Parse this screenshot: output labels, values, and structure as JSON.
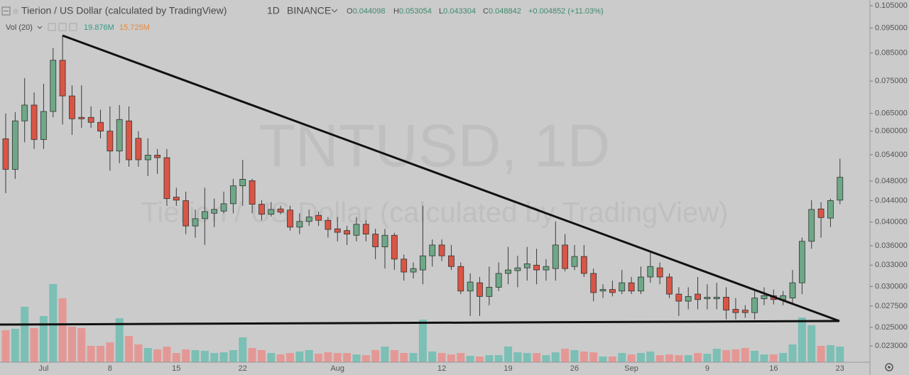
{
  "chart_data": {
    "type": "candlestick",
    "title": "Tierion / US Dollar (calculated by TradingView)",
    "interval": "1D",
    "exchange": "BINANCE",
    "watermark": "TNTUSD, 1D",
    "ohlc_labels": [
      "O",
      "H",
      "L",
      "C"
    ],
    "change": "+0.004852 (+11.03%)",
    "log_scale": true,
    "grid": false,
    "up_color": "#6ea887",
    "down_color": "#d95545",
    "categories": [
      null,
      null,
      null,
      null,
      "Jul",
      null,
      null,
      null,
      null,
      null,
      null,
      "8",
      null,
      null,
      null,
      null,
      null,
      null,
      "15",
      null,
      null,
      null,
      null,
      null,
      null,
      "22",
      null,
      null,
      null,
      null,
      null,
      null,
      null,
      null,
      null,
      "Aug",
      null,
      null,
      null,
      null,
      null,
      null,
      null,
      null,
      null,
      null,
      "12",
      null,
      null,
      null,
      null,
      null,
      null,
      "19",
      null,
      null,
      null,
      null,
      null,
      null,
      "26",
      null,
      null,
      null,
      null,
      null,
      "Sep",
      null,
      null,
      null,
      null,
      null,
      null,
      null,
      "9",
      null,
      null,
      null,
      null,
      null,
      null,
      "16",
      null,
      null,
      null,
      null,
      null,
      null,
      "23"
    ],
    "open": [
      0.058,
      0.0506,
      0.0628,
      0.0674,
      0.0578,
      0.0655,
      0.0823,
      0.0702,
      0.0638,
      0.0638,
      0.0624,
      0.06,
      0.0549,
      0.0628,
      0.0581,
      0.0528,
      0.0539,
      0.0533,
      0.0447,
      0.044,
      0.0393,
      0.0406,
      0.0416,
      0.042,
      0.0434,
      0.047,
      0.0481,
      0.0433,
      0.0414,
      0.0424,
      0.0422,
      0.0391,
      0.0401,
      0.0412,
      0.0403,
      0.0388,
      0.0385,
      0.0377,
      0.0396,
      0.0379,
      0.0358,
      0.0377,
      0.0339,
      0.032,
      0.0323,
      0.0344,
      0.0361,
      0.0344,
      0.0328,
      0.0294,
      0.0305,
      0.0287,
      0.0299,
      0.0318,
      0.0322,
      0.0326,
      0.033,
      0.0323,
      0.0325,
      0.0361,
      0.0328,
      0.0343,
      0.0318,
      0.0294,
      0.0296,
      0.0294,
      0.0305,
      0.0294,
      0.0313,
      0.0326,
      0.0313,
      0.029,
      0.0281,
      0.029,
      0.0284,
      0.0284,
      0.0286,
      0.0271,
      0.027,
      0.0267,
      0.0284,
      0.0288,
      0.0283,
      0.0285,
      0.0305,
      0.0367,
      0.0424,
      0.0407,
      0.044098
    ],
    "high": [
      0.0649,
      0.0653,
      0.076,
      0.0713,
      0.0741,
      0.0869,
      0.0919,
      0.0736,
      0.0736,
      0.067,
      0.066,
      0.067,
      0.0674,
      0.067,
      0.06,
      0.0581,
      0.0554,
      0.0554,
      0.0466,
      0.0458,
      0.0423,
      0.0466,
      0.0444,
      0.0458,
      0.0485,
      0.0528,
      0.0485,
      0.0441,
      0.0437,
      0.043,
      0.043,
      0.0416,
      0.0423,
      0.0419,
      0.0409,
      0.0409,
      0.0393,
      0.0409,
      0.0403,
      0.0388,
      0.0388,
      0.0381,
      0.0346,
      0.0334,
      0.043,
      0.037,
      0.037,
      0.0361,
      0.0334,
      0.0318,
      0.0313,
      0.0328,
      0.0334,
      0.0358,
      0.0344,
      0.0358,
      0.0355,
      0.0339,
      0.0401,
      0.0379,
      0.0361,
      0.0361,
      0.0325,
      0.0303,
      0.0308,
      0.0323,
      0.0313,
      0.0328,
      0.035,
      0.0334,
      0.0318,
      0.0299,
      0.0299,
      0.0313,
      0.0303,
      0.0305,
      0.0299,
      0.0285,
      0.0276,
      0.0294,
      0.0299,
      0.0296,
      0.0294,
      0.0323,
      0.0373,
      0.0441,
      0.0437,
      0.0444,
      0.053054
    ],
    "low": [
      0.0455,
      0.0485,
      0.0571,
      0.0554,
      0.0554,
      0.0638,
      0.0618,
      0.059,
      0.0609,
      0.0609,
      0.0581,
      0.0503,
      0.052,
      0.0512,
      0.0512,
      0.0491,
      0.0496,
      0.043,
      0.043,
      0.0379,
      0.0373,
      0.0361,
      0.0391,
      0.0416,
      0.0416,
      0.043,
      0.0416,
      0.0403,
      0.041,
      0.0414,
      0.0385,
      0.0379,
      0.0393,
      0.0393,
      0.0373,
      0.0367,
      0.0361,
      0.0367,
      0.0367,
      0.0339,
      0.0325,
      0.0323,
      0.0308,
      0.0311,
      0.0303,
      0.0328,
      0.0336,
      0.0323,
      0.029,
      0.0263,
      0.0263,
      0.0276,
      0.0294,
      0.0303,
      0.0299,
      0.0308,
      0.0303,
      0.0308,
      0.0308,
      0.0321,
      0.0323,
      0.0313,
      0.0281,
      0.0285,
      0.0287,
      0.029,
      0.029,
      0.029,
      0.0305,
      0.0303,
      0.0285,
      0.0263,
      0.0271,
      0.0271,
      0.0271,
      0.0271,
      0.0259,
      0.0259,
      0.0261,
      0.0259,
      0.0276,
      0.0277,
      0.0276,
      0.0277,
      0.029,
      0.0355,
      0.0373,
      0.0391,
      0.043304
    ],
    "close": [
      0.0506,
      0.0628,
      0.0674,
      0.0578,
      0.0655,
      0.0823,
      0.0702,
      0.0634,
      0.0634,
      0.0624,
      0.06,
      0.0549,
      0.0632,
      0.0528,
      0.0528,
      0.0539,
      0.0533,
      0.0444,
      0.0441,
      0.0393,
      0.0406,
      0.0419,
      0.0423,
      0.0434,
      0.047,
      0.0484,
      0.0433,
      0.0414,
      0.0423,
      0.0418,
      0.0391,
      0.0401,
      0.0409,
      0.0403,
      0.0387,
      0.0382,
      0.0379,
      0.0396,
      0.0379,
      0.0358,
      0.0377,
      0.0339,
      0.032,
      0.0325,
      0.0344,
      0.0361,
      0.0344,
      0.0328,
      0.0294,
      0.0306,
      0.0287,
      0.0299,
      0.0318,
      0.0323,
      0.0326,
      0.0332,
      0.0323,
      0.0328,
      0.0361,
      0.0325,
      0.0343,
      0.0318,
      0.0292,
      0.0296,
      0.0292,
      0.0305,
      0.0294,
      0.0313,
      0.0328,
      0.0313,
      0.029,
      0.0281,
      0.0287,
      0.0283,
      0.0286,
      0.0286,
      0.027,
      0.0267,
      0.0267,
      0.0285,
      0.0288,
      0.0283,
      0.0288,
      0.0305,
      0.0367,
      0.0423,
      0.0408,
      0.044,
      0.048842
    ],
    "volume": {
      "label": "Vol (20)",
      "value_label": "19.876M",
      "ma_label": "15.725M",
      "up_color": "#7bbfb5",
      "down_color": "#e49895",
      "values": [
        40.7,
        42.5,
        70.5,
        43.4,
        58.7,
        99.4,
        81.3,
        45.2,
        43.4,
        20.8,
        20.8,
        25.3,
        56.0,
        33.4,
        22.6,
        18.1,
        16.3,
        19.9,
        11.7,
        16.3,
        15.4,
        14.5,
        11.7,
        12.6,
        15.4,
        31.6,
        18.1,
        15.4,
        11.7,
        9.9,
        11.7,
        13.6,
        15.4,
        10.8,
        12.6,
        11.7,
        11.7,
        9.9,
        9.0,
        15.4,
        19.9,
        15.4,
        11.7,
        11.7,
        54.2,
        13.6,
        11.7,
        9.9,
        11.7,
        8.1,
        7.2,
        9.0,
        9.0,
        19.9,
        12.6,
        11.7,
        11.7,
        9.0,
        12.6,
        17.2,
        15.4,
        13.6,
        12.6,
        7.2,
        7.2,
        11.7,
        9.9,
        11.7,
        13.6,
        9.0,
        9.9,
        9.0,
        9.0,
        11.7,
        10.8,
        17.2,
        15.4,
        16.3,
        18.1,
        14.5,
        9.9,
        9.9,
        11.7,
        22.6,
        56.9,
        47.0,
        20.8,
        21.7,
        19.876
      ]
    },
    "ylim": [
      0.0214,
      0.1077
    ],
    "yticks": [
      {
        "value": 0.105,
        "label": "0.105000"
      },
      {
        "value": 0.095,
        "label": "0.095000"
      },
      {
        "value": 0.085,
        "label": "0.085000"
      },
      {
        "value": 0.075,
        "label": "0.075000"
      },
      {
        "value": 0.065,
        "label": "0.065000"
      },
      {
        "value": 0.06,
        "label": "0.060000"
      },
      {
        "value": 0.054,
        "label": "0.054000"
      },
      {
        "value": 0.048,
        "label": "0.048000"
      },
      {
        "value": 0.044,
        "label": "0.044000"
      },
      {
        "value": 0.04,
        "label": "0.040000"
      },
      {
        "value": 0.036,
        "label": "0.036000"
      },
      {
        "value": 0.033,
        "label": "0.033000"
      },
      {
        "value": 0.03,
        "label": "0.030000"
      },
      {
        "value": 0.0275,
        "label": "0.027500"
      },
      {
        "value": 0.025,
        "label": "0.025000"
      },
      {
        "value": 0.023,
        "label": "0.023000"
      }
    ]
  }
}
